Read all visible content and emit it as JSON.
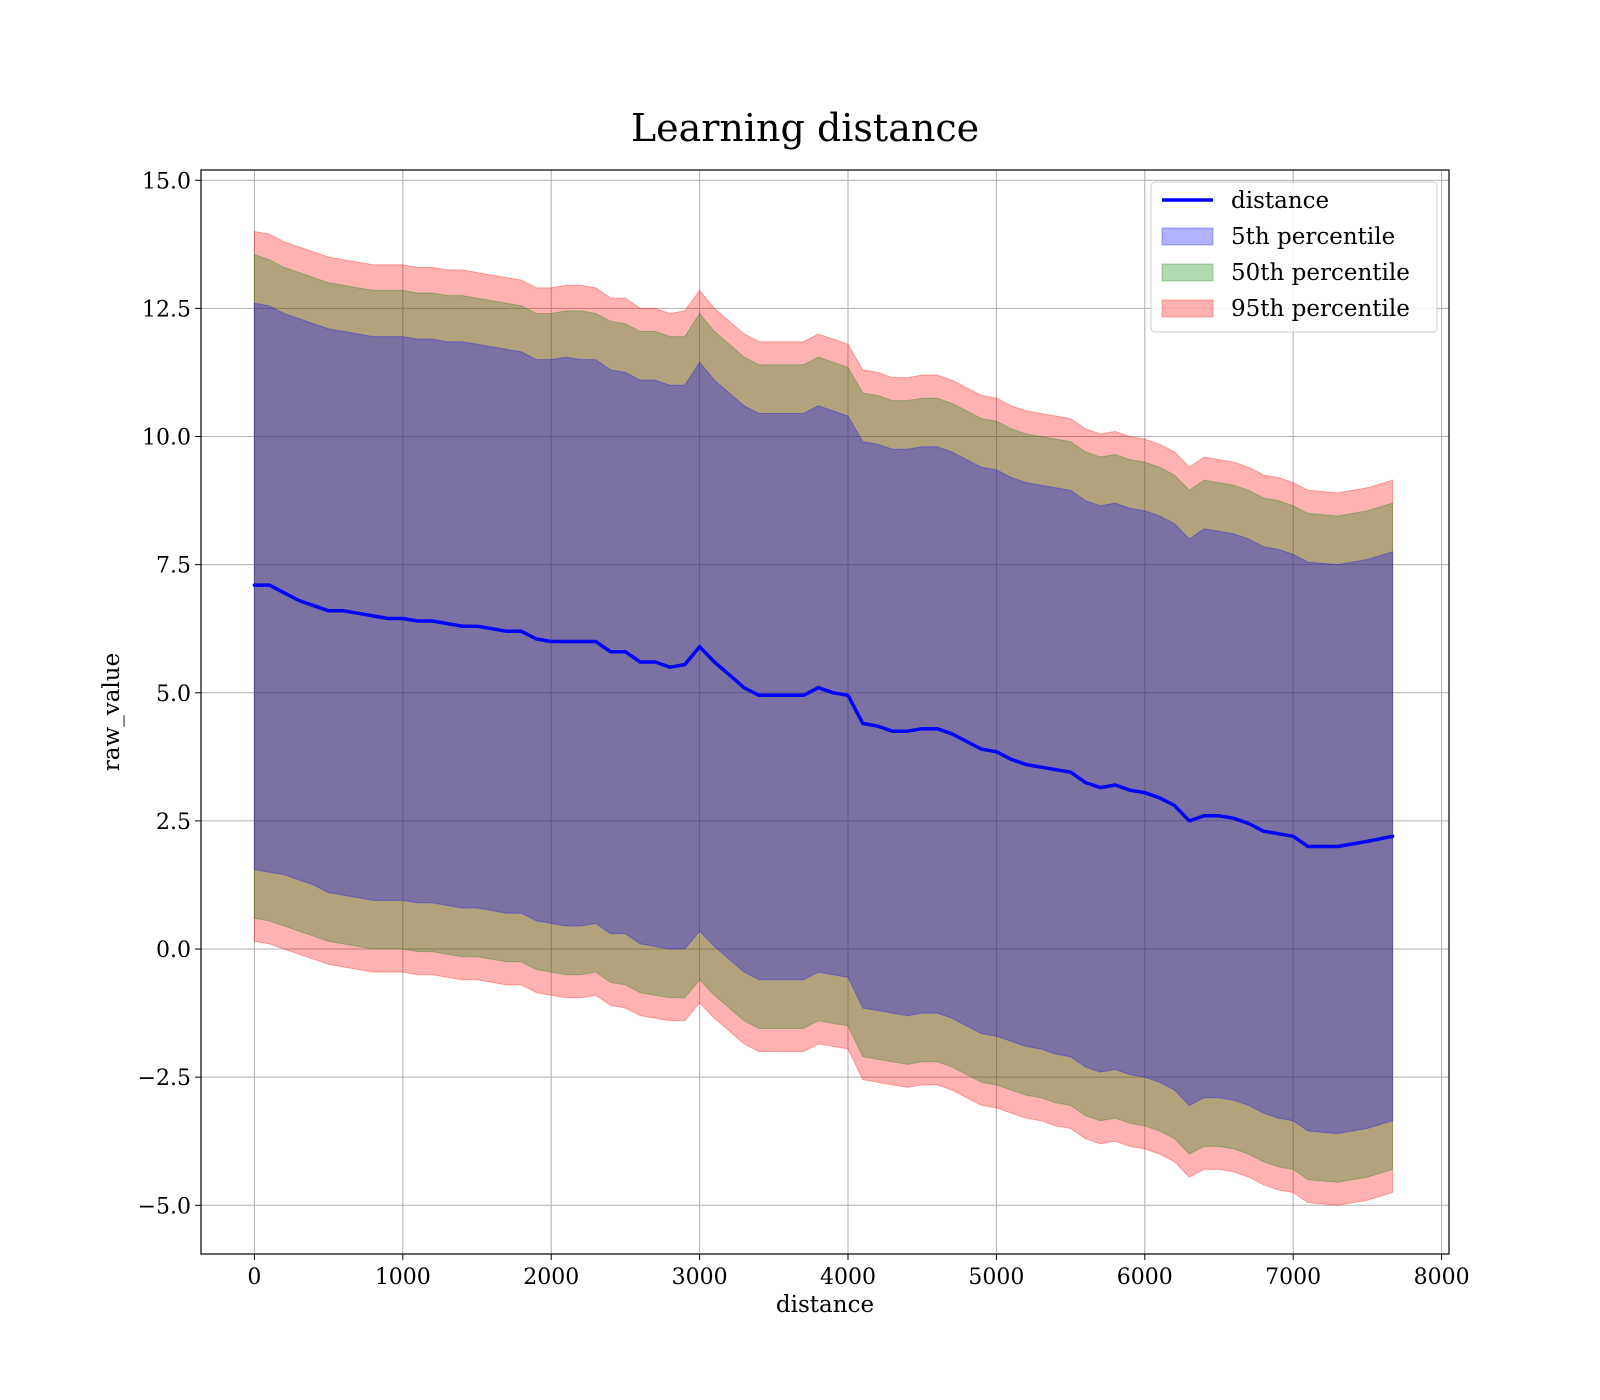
{
  "chart_data": {
    "type": "area",
    "title": "Learning distance",
    "xlabel": "distance",
    "ylabel": "raw_value",
    "xlim": [
      -360,
      8050
    ],
    "ylim": [
      -5.95,
      15.2
    ],
    "xticks": [
      0,
      1000,
      2000,
      3000,
      4000,
      5000,
      6000,
      7000,
      8000
    ],
    "xtick_labels": [
      "0",
      "1000",
      "2000",
      "3000",
      "4000",
      "5000",
      "6000",
      "7000",
      "8000"
    ],
    "yticks": [
      15.0,
      12.5,
      10.0,
      7.5,
      5.0,
      2.5,
      0.0,
      -2.5,
      -5.0
    ],
    "ytick_labels": [
      "15.0",
      "12.5",
      "10.0",
      "7.5",
      "5.0",
      "2.5",
      "0.0",
      "−2.5",
      "−5.0"
    ],
    "grid": true,
    "legend_position": "top-right",
    "colors": {
      "line": "#0000ff",
      "p5": "#0000ff",
      "p50": "#008000",
      "p95": "#ff0000"
    },
    "x": [
      0,
      100,
      200,
      300,
      400,
      500,
      600,
      700,
      800,
      900,
      1000,
      1100,
      1200,
      1300,
      1400,
      1500,
      1600,
      1700,
      1800,
      1900,
      2000,
      2100,
      2200,
      2300,
      2400,
      2500,
      2600,
      2700,
      2800,
      2900,
      3000,
      3100,
      3200,
      3300,
      3400,
      3500,
      3600,
      3700,
      3800,
      3900,
      4000,
      4100,
      4200,
      4300,
      4400,
      4500,
      4600,
      4700,
      4800,
      4900,
      5000,
      5100,
      5200,
      5300,
      5400,
      5500,
      5600,
      5700,
      5800,
      5900,
      6000,
      6100,
      6200,
      6300,
      6400,
      6500,
      6600,
      6700,
      6800,
      6900,
      7000,
      7100,
      7300,
      7500,
      7670
    ],
    "series": [
      {
        "name": "distance",
        "kind": "line",
        "values": [
          7.1,
          7.1,
          6.95,
          6.8,
          6.7,
          6.6,
          6.6,
          6.55,
          6.5,
          6.45,
          6.45,
          6.4,
          6.4,
          6.35,
          6.3,
          6.3,
          6.25,
          6.2,
          6.2,
          6.05,
          6.0,
          6.0,
          6.0,
          6.0,
          5.8,
          5.8,
          5.6,
          5.6,
          5.5,
          5.55,
          5.9,
          5.6,
          5.35,
          5.1,
          4.95,
          4.95,
          4.95,
          4.95,
          5.1,
          5.0,
          4.95,
          4.4,
          4.35,
          4.25,
          4.25,
          4.3,
          4.3,
          4.2,
          4.05,
          3.9,
          3.85,
          3.7,
          3.6,
          3.55,
          3.5,
          3.45,
          3.25,
          3.15,
          3.2,
          3.1,
          3.05,
          2.95,
          2.8,
          2.5,
          2.6,
          2.6,
          2.55,
          2.45,
          2.3,
          2.25,
          2.2,
          2.0,
          2.0,
          2.1,
          2.2
        ]
      },
      {
        "name": "5th percentile",
        "kind": "band",
        "upper": [
          12.6,
          12.55,
          12.4,
          12.3,
          12.2,
          12.1,
          12.05,
          12.0,
          11.95,
          11.95,
          11.95,
          11.9,
          11.9,
          11.85,
          11.85,
          11.8,
          11.75,
          11.7,
          11.65,
          11.5,
          11.5,
          11.55,
          11.5,
          11.5,
          11.3,
          11.25,
          11.1,
          11.1,
          11.0,
          11.0,
          11.45,
          11.1,
          10.85,
          10.6,
          10.45,
          10.45,
          10.45,
          10.45,
          10.6,
          10.5,
          10.4,
          9.9,
          9.85,
          9.75,
          9.75,
          9.8,
          9.8,
          9.7,
          9.55,
          9.4,
          9.35,
          9.2,
          9.1,
          9.05,
          9.0,
          8.95,
          8.75,
          8.65,
          8.7,
          8.6,
          8.55,
          8.45,
          8.3,
          8.0,
          8.2,
          8.15,
          8.1,
          8.0,
          7.85,
          7.8,
          7.7,
          7.55,
          7.5,
          7.6,
          7.75
        ],
        "lower": [
          1.55,
          1.5,
          1.45,
          1.35,
          1.25,
          1.1,
          1.05,
          1.0,
          0.95,
          0.95,
          0.95,
          0.9,
          0.9,
          0.85,
          0.8,
          0.8,
          0.75,
          0.7,
          0.7,
          0.55,
          0.5,
          0.45,
          0.45,
          0.5,
          0.3,
          0.3,
          0.1,
          0.05,
          0.0,
          0.0,
          0.35,
          0.05,
          -0.2,
          -0.45,
          -0.6,
          -0.6,
          -0.6,
          -0.6,
          -0.45,
          -0.5,
          -0.55,
          -1.15,
          -1.2,
          -1.25,
          -1.3,
          -1.25,
          -1.25,
          -1.35,
          -1.5,
          -1.65,
          -1.7,
          -1.8,
          -1.9,
          -1.95,
          -2.05,
          -2.1,
          -2.3,
          -2.4,
          -2.35,
          -2.45,
          -2.5,
          -2.6,
          -2.75,
          -3.05,
          -2.9,
          -2.9,
          -2.95,
          -3.05,
          -3.2,
          -3.3,
          -3.35,
          -3.55,
          -3.6,
          -3.5,
          -3.35
        ]
      },
      {
        "name": "50th percentile",
        "kind": "band",
        "upper": [
          13.55,
          13.45,
          13.3,
          13.2,
          13.1,
          13.0,
          12.95,
          12.9,
          12.85,
          12.85,
          12.85,
          12.8,
          12.8,
          12.75,
          12.75,
          12.7,
          12.65,
          12.6,
          12.55,
          12.4,
          12.4,
          12.45,
          12.45,
          12.4,
          12.25,
          12.2,
          12.05,
          12.05,
          11.95,
          11.95,
          12.4,
          12.05,
          11.8,
          11.55,
          11.4,
          11.4,
          11.4,
          11.4,
          11.55,
          11.45,
          11.35,
          10.85,
          10.8,
          10.7,
          10.7,
          10.75,
          10.75,
          10.65,
          10.5,
          10.35,
          10.3,
          10.15,
          10.05,
          10.0,
          9.95,
          9.9,
          9.7,
          9.6,
          9.65,
          9.55,
          9.5,
          9.4,
          9.25,
          8.95,
          9.15,
          9.1,
          9.05,
          8.95,
          8.8,
          8.75,
          8.65,
          8.5,
          8.45,
          8.55,
          8.7
        ],
        "lower": [
          0.6,
          0.55,
          0.45,
          0.35,
          0.25,
          0.15,
          0.1,
          0.05,
          0.0,
          0.0,
          0.0,
          -0.05,
          -0.05,
          -0.1,
          -0.15,
          -0.15,
          -0.2,
          -0.25,
          -0.25,
          -0.4,
          -0.45,
          -0.5,
          -0.5,
          -0.45,
          -0.65,
          -0.7,
          -0.85,
          -0.9,
          -0.95,
          -0.95,
          -0.6,
          -0.9,
          -1.15,
          -1.4,
          -1.55,
          -1.55,
          -1.55,
          -1.55,
          -1.4,
          -1.45,
          -1.5,
          -2.1,
          -2.15,
          -2.2,
          -2.25,
          -2.2,
          -2.2,
          -2.3,
          -2.45,
          -2.6,
          -2.65,
          -2.75,
          -2.85,
          -2.9,
          -3.0,
          -3.05,
          -3.25,
          -3.35,
          -3.3,
          -3.4,
          -3.45,
          -3.55,
          -3.7,
          -4.0,
          -3.85,
          -3.85,
          -3.9,
          -4.0,
          -4.15,
          -4.25,
          -4.3,
          -4.5,
          -4.55,
          -4.45,
          -4.3
        ]
      },
      {
        "name": "95th percentile",
        "kind": "band",
        "upper": [
          14.0,
          13.95,
          13.8,
          13.7,
          13.6,
          13.5,
          13.45,
          13.4,
          13.35,
          13.35,
          13.35,
          13.3,
          13.3,
          13.25,
          13.25,
          13.2,
          13.15,
          13.1,
          13.05,
          12.9,
          12.9,
          12.95,
          12.95,
          12.9,
          12.7,
          12.7,
          12.5,
          12.5,
          12.4,
          12.45,
          12.85,
          12.5,
          12.25,
          12.0,
          11.85,
          11.85,
          11.85,
          11.85,
          12.0,
          11.9,
          11.8,
          11.3,
          11.25,
          11.15,
          11.15,
          11.2,
          11.2,
          11.1,
          10.95,
          10.8,
          10.75,
          10.6,
          10.5,
          10.45,
          10.4,
          10.35,
          10.15,
          10.05,
          10.1,
          10.0,
          9.95,
          9.85,
          9.7,
          9.4,
          9.6,
          9.55,
          9.5,
          9.4,
          9.25,
          9.2,
          9.1,
          8.95,
          8.9,
          9.0,
          9.15
        ],
        "lower": [
          0.15,
          0.1,
          0.0,
          -0.1,
          -0.2,
          -0.3,
          -0.35,
          -0.4,
          -0.45,
          -0.45,
          -0.45,
          -0.5,
          -0.5,
          -0.55,
          -0.6,
          -0.6,
          -0.65,
          -0.7,
          -0.7,
          -0.85,
          -0.9,
          -0.95,
          -0.95,
          -0.9,
          -1.1,
          -1.15,
          -1.3,
          -1.35,
          -1.4,
          -1.4,
          -1.05,
          -1.35,
          -1.6,
          -1.85,
          -2.0,
          -2.0,
          -2.0,
          -2.0,
          -1.85,
          -1.9,
          -1.95,
          -2.55,
          -2.6,
          -2.65,
          -2.7,
          -2.65,
          -2.65,
          -2.75,
          -2.9,
          -3.05,
          -3.1,
          -3.2,
          -3.3,
          -3.35,
          -3.45,
          -3.5,
          -3.7,
          -3.8,
          -3.75,
          -3.85,
          -3.9,
          -4.0,
          -4.15,
          -4.45,
          -4.3,
          -4.3,
          -4.35,
          -4.45,
          -4.6,
          -4.7,
          -4.75,
          -4.95,
          -5.0,
          -4.9,
          -4.75
        ]
      }
    ]
  }
}
